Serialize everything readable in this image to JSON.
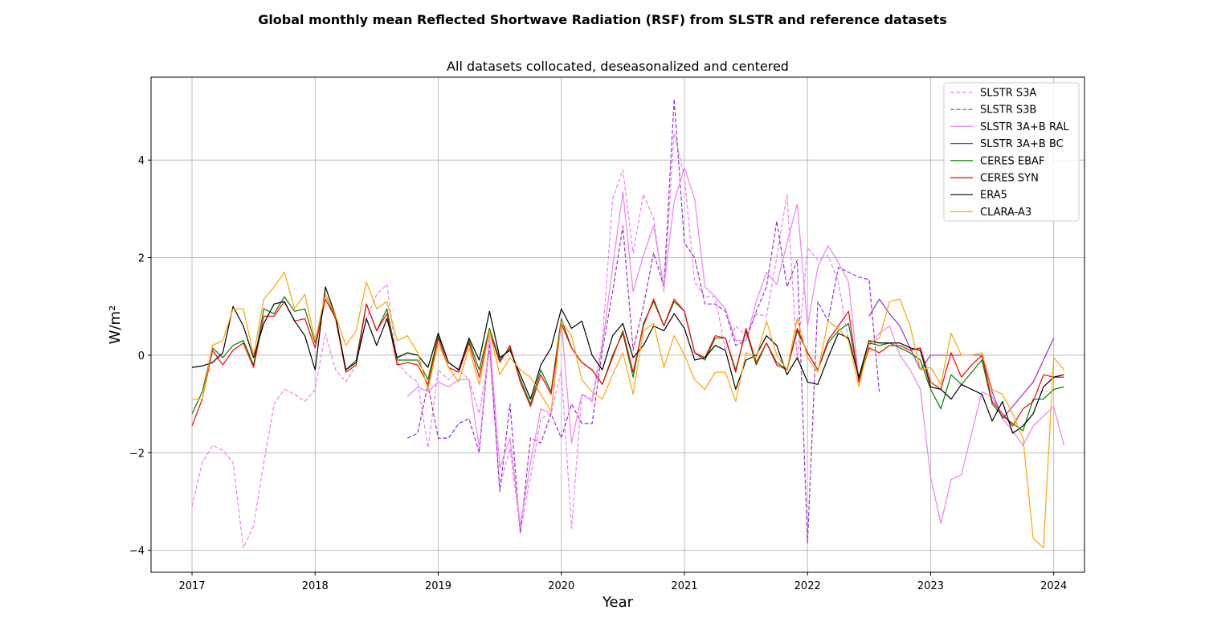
{
  "chart_data": {
    "type": "line",
    "suptitle": "Global monthly mean Reflected Shortwave Radiation (RSF) from SLSTR and reference datasets",
    "title": "All datasets collocated, deseasonalized and centered",
    "xlabel": "Year",
    "ylabel": "W/m²",
    "xlim": [
      2016.667,
      2024.25
    ],
    "ylim": [
      -4.45,
      5.7
    ],
    "xticks": [
      2017,
      2018,
      2019,
      2020,
      2021,
      2022,
      2023,
      2024
    ],
    "xtick_labels": [
      "2017",
      "2018",
      "2019",
      "2020",
      "2021",
      "2022",
      "2023",
      "2024"
    ],
    "yticks": [
      -4,
      -2,
      0,
      2,
      4
    ],
    "ytick_labels": [
      "−4",
      "−2",
      "0",
      "2",
      "4"
    ],
    "grid": true,
    "legend_position": "top-right",
    "series": [
      {
        "name": "SLSTR S3A",
        "color": "#ee82ee",
        "dash": "dashed",
        "start": 2017.0,
        "values": [
          -3.1,
          -2.2,
          -1.85,
          -1.95,
          -2.2,
          -3.95,
          -3.5,
          -2.2,
          -1.0,
          -0.7,
          -0.8,
          -0.95,
          -0.7,
          0.45,
          -0.3,
          -0.55,
          -0.2,
          0.75,
          1.25,
          1.45,
          -0.15,
          -0.4,
          -0.55,
          -1.9,
          -0.3,
          -0.5,
          -0.3,
          -0.5,
          -1.2,
          0.1,
          -2.7,
          -1.9,
          -3.6,
          -2.5,
          -1.3,
          -1.2,
          -0.3,
          -3.55,
          -0.8,
          -0.9,
          0.3,
          3.2,
          3.8,
          2.1,
          3.3,
          2.8,
          1.3,
          4.55,
          3.65,
          1.5,
          1.2,
          1.2,
          0.1,
          0.6,
          0.4,
          0.85,
          0.8,
          2.0,
          3.3,
          -0.1,
          2.2,
          1.95,
          2.05,
          1.5,
          0.3
        ]
      },
      {
        "name": "SLSTR S3B",
        "color": "#9932cc",
        "dash": "dashed",
        "start": 2018.75,
        "values": [
          -1.7,
          -1.6,
          -0.6,
          -1.7,
          -1.7,
          -1.4,
          -1.3,
          -2.0,
          0.3,
          -2.8,
          -1.0,
          -3.65,
          -1.7,
          -1.8,
          -1.2,
          -1.7,
          -1.0,
          -1.4,
          -1.4,
          0.1,
          1.3,
          2.65,
          0.1,
          1.0,
          2.1,
          1.4,
          5.25,
          2.3,
          2.0,
          1.05,
          1.05,
          0.9,
          0.2,
          0.3,
          0.9,
          1.4,
          2.75,
          1.4,
          1.95,
          -3.85,
          1.1,
          0.7,
          1.8,
          1.7,
          1.6,
          1.55,
          -0.75
        ]
      },
      {
        "name": "SLSTR 3A+B RAL",
        "color": "#ee82ee",
        "dash": "solid",
        "start": 2018.75,
        "values": [
          -0.85,
          -0.65,
          -0.75,
          -0.55,
          -0.65,
          -0.5,
          -0.5,
          -1.9,
          0.4,
          -2.3,
          -1.7,
          -3.5,
          -2.2,
          -1.1,
          -1.2,
          0.7,
          -1.8,
          -0.8,
          -0.95,
          0.2,
          1.8,
          3.35,
          1.3,
          2.05,
          2.65,
          1.4,
          3.15,
          3.85,
          3.2,
          1.4,
          1.2,
          0.95,
          0.3,
          0.3,
          1.1,
          1.7,
          1.45,
          2.3,
          3.1,
          0.6,
          1.8,
          2.25,
          1.9,
          1.5,
          -0.5,
          0.2,
          0.45,
          0.6,
          0.0,
          -0.3,
          -0.7,
          -2.5,
          -3.45,
          -2.55,
          -2.45,
          -1.6,
          -0.75,
          -0.85,
          -1.3,
          -1.55,
          -1.85,
          -1.45,
          -1.25,
          -1.05,
          -1.85
        ]
      },
      {
        "name": "SLSTR 3A+B BC",
        "color": "#9932cc",
        "dash": "solid",
        "start": 2022.5,
        "values": [
          0.8,
          1.15,
          0.85,
          0.6,
          0.15,
          -0.3,
          0.0,
          0.0,
          0.0,
          0.0,
          0.0,
          0.0,
          -0.75,
          -1.3,
          -1.05,
          -0.8,
          -0.55,
          -0.1,
          0.35
        ]
      },
      {
        "name": "CERES EBAF",
        "color": "#008000",
        "dash": "solid",
        "start": 2017.0,
        "values": [
          -1.2,
          -0.75,
          0.15,
          -0.05,
          0.2,
          0.3,
          -0.2,
          0.95,
          0.85,
          1.2,
          0.9,
          0.95,
          0.25,
          1.25,
          0.75,
          -0.3,
          -0.1,
          1.05,
          0.5,
          0.95,
          -0.1,
          -0.1,
          -0.1,
          -0.5,
          0.4,
          -0.15,
          -0.3,
          0.3,
          -0.3,
          0.55,
          -0.1,
          0.15,
          -0.5,
          -1.0,
          -0.3,
          -0.75,
          0.75,
          0.15,
          -0.15,
          -0.3,
          -0.6,
          0.0,
          0.45,
          -0.45,
          0.65,
          1.1,
          0.6,
          1.1,
          0.9,
          0.05,
          -0.1,
          0.35,
          0.35,
          -0.3,
          0.5,
          -0.2,
          0.25,
          -0.15,
          -0.3,
          0.5,
          0.05,
          -0.3,
          0.25,
          0.5,
          0.65,
          -0.5,
          0.25,
          0.2,
          0.25,
          0.15,
          0.05,
          -0.1,
          -0.7,
          -1.1,
          -0.4,
          -0.6,
          -0.35,
          -0.1,
          -1.0,
          -1.25,
          -1.4,
          -1.55,
          -0.9,
          -0.9,
          -0.7,
          -0.65
        ]
      },
      {
        "name": "CERES SYN",
        "color": "#ff0000",
        "dash": "solid",
        "start": 2017.0,
        "values": [
          -1.45,
          -0.9,
          0.1,
          -0.2,
          0.1,
          0.25,
          -0.25,
          0.8,
          0.8,
          1.1,
          0.7,
          0.75,
          0.15,
          1.15,
          0.75,
          -0.35,
          -0.2,
          1.05,
          0.5,
          0.85,
          -0.2,
          -0.15,
          -0.2,
          -0.6,
          0.35,
          -0.25,
          -0.35,
          0.25,
          -0.45,
          0.5,
          -0.15,
          0.2,
          -0.55,
          -1.05,
          -0.4,
          -0.8,
          0.65,
          0.15,
          -0.15,
          -0.3,
          -0.6,
          -0.05,
          0.5,
          -0.35,
          0.6,
          1.15,
          0.6,
          1.15,
          0.9,
          0.05,
          -0.05,
          0.4,
          0.35,
          -0.35,
          0.55,
          -0.15,
          0.25,
          -0.2,
          -0.3,
          0.55,
          0.05,
          -0.3,
          0.3,
          0.6,
          0.9,
          -0.55,
          0.15,
          0.05,
          0.2,
          0.2,
          0.1,
          0.15,
          -0.55,
          -0.7,
          0.05,
          -0.45,
          -0.2,
          0.0,
          -0.95,
          -1.2,
          -1.45,
          -1.1,
          -0.95,
          -0.4,
          -0.45,
          -0.45
        ]
      },
      {
        "name": "ERA5",
        "color": "#000000",
        "dash": "solid",
        "start": 2017.0,
        "values": [
          -0.25,
          -0.22,
          -0.15,
          0.05,
          1.0,
          0.6,
          -0.05,
          0.65,
          1.05,
          1.1,
          0.7,
          0.4,
          -0.3,
          1.4,
          0.8,
          -0.3,
          -0.15,
          0.75,
          0.2,
          0.75,
          -0.05,
          0.05,
          0.0,
          -0.25,
          0.45,
          -0.15,
          -0.3,
          0.35,
          -0.1,
          0.9,
          -0.05,
          0.1,
          -0.4,
          -0.9,
          -0.2,
          0.15,
          0.95,
          0.55,
          0.7,
          0.0,
          -0.3,
          0.4,
          0.65,
          -0.05,
          0.2,
          0.6,
          0.5,
          0.85,
          0.55,
          -0.1,
          -0.05,
          0.2,
          0.1,
          -0.7,
          -0.1,
          0.0,
          0.4,
          0.2,
          -0.4,
          -0.05,
          -0.55,
          -0.6,
          -0.05,
          0.45,
          0.35,
          -0.45,
          0.3,
          0.25,
          0.25,
          0.25,
          0.15,
          0.1,
          -0.65,
          -0.7,
          -0.9,
          -0.6,
          -0.7,
          -0.8,
          -1.35,
          -0.95,
          -1.6,
          -1.45,
          -1.2,
          -0.65,
          -0.45,
          -0.4
        ]
      },
      {
        "name": "CLARA-A3",
        "color": "#ffa500",
        "dash": "solid",
        "start": 2017.0,
        "values": [
          -0.9,
          -0.9,
          0.2,
          0.3,
          0.95,
          0.95,
          0.0,
          1.15,
          1.4,
          1.7,
          0.95,
          1.25,
          0.3,
          1.25,
          0.8,
          0.2,
          0.5,
          1.5,
          0.95,
          1.1,
          0.3,
          0.4,
          0.05,
          -0.7,
          0.25,
          -0.25,
          -0.55,
          0.15,
          -0.6,
          0.5,
          -0.4,
          -0.05,
          -0.3,
          -0.45,
          -0.8,
          -1.15,
          0.7,
          0.4,
          -0.5,
          -0.75,
          -0.9,
          -0.4,
          0.05,
          -0.8,
          0.5,
          0.65,
          -0.25,
          0.4,
          0.0,
          -0.5,
          -0.7,
          -0.35,
          -0.35,
          -0.95,
          0.05,
          -0.05,
          0.7,
          0.0,
          -0.3,
          0.75,
          -0.05,
          -0.35,
          0.7,
          0.55,
          0.3,
          -0.65,
          0.25,
          0.35,
          1.1,
          1.15,
          0.6,
          -0.3,
          -0.25,
          -0.6,
          0.45,
          0.0,
          0.0,
          0.05,
          -0.7,
          -0.8,
          -1.2,
          -1.7,
          -3.75,
          -3.95,
          -0.05,
          -0.3
        ]
      }
    ]
  }
}
